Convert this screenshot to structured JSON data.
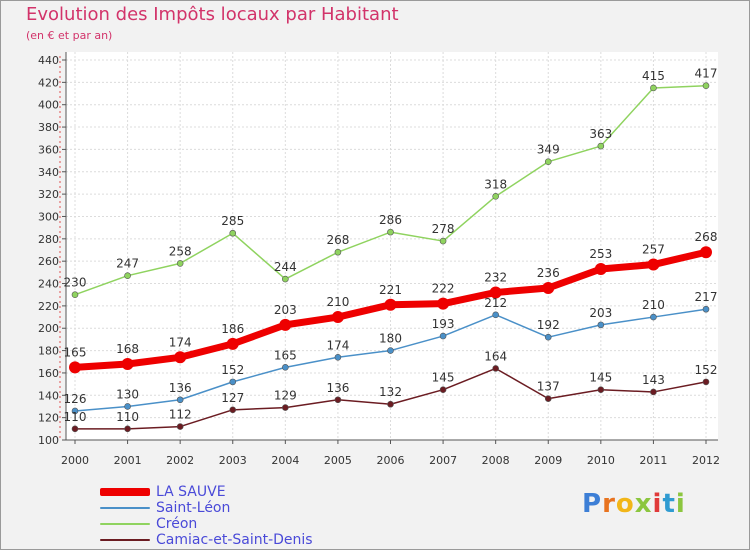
{
  "title": "Evolution des Impôts locaux par Habitant",
  "subtitle": "(en € et par an)",
  "logo": {
    "letters": [
      "P",
      "r",
      "o",
      "x",
      "i",
      "t",
      "i"
    ],
    "colors": [
      "#3d7fd6",
      "#e8731f",
      "#f2b619",
      "#8cc63f",
      "#e03a3a",
      "#2f9bd1",
      "#8cc63f"
    ]
  },
  "chart_data": {
    "type": "line",
    "title": "Evolution des Impôts locaux par Habitant",
    "subtitle": "(en € et par an)",
    "xlabel": "",
    "ylabel": "",
    "categories": [
      "2000",
      "2001",
      "2002",
      "2003",
      "2004",
      "2005",
      "2006",
      "2007",
      "2008",
      "2009",
      "2010",
      "2011",
      "2012"
    ],
    "ylim": [
      100,
      440
    ],
    "yticks": [
      100,
      120,
      140,
      160,
      180,
      200,
      220,
      240,
      260,
      280,
      300,
      320,
      340,
      360,
      380,
      400,
      420,
      440
    ],
    "grid": true,
    "legend_position": "bottom-left",
    "series": [
      {
        "name": "Créon",
        "color": "#8fd35f",
        "values": [
          230,
          247,
          258,
          285,
          244,
          268,
          286,
          278,
          318,
          349,
          363,
          415,
          417
        ]
      },
      {
        "name": "Saint-Léon",
        "color": "#4a90c8",
        "values": [
          126,
          130,
          136,
          152,
          165,
          174,
          180,
          193,
          212,
          192,
          203,
          210,
          217
        ]
      },
      {
        "name": "Camiac-et-Saint-Denis",
        "color": "#6b1c22",
        "values": [
          110,
          110,
          112,
          127,
          129,
          136,
          132,
          145,
          164,
          137,
          145,
          143,
          152
        ]
      },
      {
        "name": "LA SAUVE",
        "color": "#ee0000",
        "values": [
          165,
          168,
          174,
          186,
          203,
          210,
          221,
          222,
          232,
          236,
          253,
          257,
          268
        ]
      }
    ],
    "legend_order": [
      "LA SAUVE",
      "Saint-Léon",
      "Créon",
      "Camiac-et-Saint-Denis"
    ]
  }
}
